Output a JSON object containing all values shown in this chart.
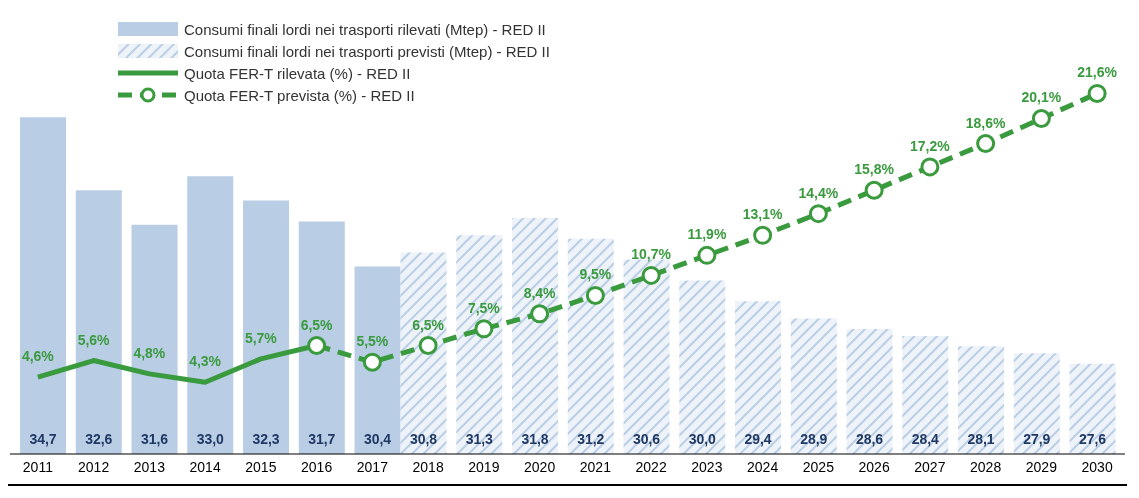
{
  "chart_data": {
    "type": "bar",
    "categories": [
      "2011",
      "2012",
      "2013",
      "2014",
      "2015",
      "2016",
      "2017",
      "2018",
      "2019",
      "2020",
      "2021",
      "2022",
      "2023",
      "2024",
      "2025",
      "2026",
      "2027",
      "2028",
      "2029",
      "2030"
    ],
    "series": [
      {
        "name": "Consumi finali lordi nei trasporti rilevati (Mtep) - RED II",
        "color": "#b9cde5",
        "values": [
          34.7,
          32.6,
          31.6,
          33.0,
          32.3,
          31.7,
          30.4,
          null,
          null,
          null,
          null,
          null,
          null,
          null,
          null,
          null,
          null,
          null,
          null,
          null
        ],
        "value_labels": [
          "34,7",
          "32,6",
          "31,6",
          "33,0",
          "32,3",
          "31,7",
          "30,4",
          null,
          null,
          null,
          null,
          null,
          null,
          null,
          null,
          null,
          null,
          null,
          null,
          null
        ]
      },
      {
        "name": "Consumi finali lordi nei trasporti previsti (Mtep) - RED II",
        "color": "#b9cde5",
        "line_style": "dashed",
        "values": [
          null,
          null,
          null,
          null,
          null,
          null,
          null,
          30.8,
          31.3,
          31.8,
          31.2,
          30.6,
          30.0,
          29.4,
          28.9,
          28.6,
          28.4,
          28.1,
          27.9,
          27.6
        ],
        "value_labels": [
          null,
          null,
          null,
          null,
          null,
          null,
          null,
          "30,8",
          "31,3",
          "31,8",
          "31,2",
          "30,6",
          "30,0",
          "29,4",
          "28,9",
          "28,6",
          "28,4",
          "28,1",
          "27,9",
          "27,6"
        ]
      },
      {
        "name": "Quota FER-T rilevata (%) - RED II",
        "type": "line",
        "axis": "y2",
        "color": "#3a9a3e",
        "line_style": "solid",
        "marker": "none",
        "values": [
          4.6,
          5.6,
          4.8,
          4.3,
          5.7,
          6.5,
          null,
          null,
          null,
          null,
          null,
          null,
          null,
          null,
          null,
          null,
          null,
          null,
          null,
          null
        ],
        "value_labels": [
          "4,6%",
          "5,6%",
          "4,8%",
          "4,3%",
          "5,7%",
          "6,5%",
          null,
          null,
          null,
          null,
          null,
          null,
          null,
          null,
          null,
          null,
          null,
          null,
          null,
          null
        ]
      },
      {
        "name": "Quota FER-T prevista (%) - RED II",
        "type": "line",
        "axis": "y2",
        "color": "#3a9a3e",
        "line_style": "dashed",
        "marker": "circle",
        "values": [
          null,
          null,
          null,
          null,
          null,
          6.5,
          5.5,
          6.5,
          7.5,
          8.4,
          9.5,
          10.7,
          11.9,
          13.1,
          14.4,
          15.8,
          17.2,
          18.6,
          20.1,
          21.6
        ],
        "value_labels": [
          null,
          null,
          null,
          null,
          null,
          null,
          "5,5%",
          "6,5%",
          "7,5%",
          "8,4%",
          "9,5%",
          "10,7%",
          "11,9%",
          "13,1%",
          "14,4%",
          "15,8%",
          "17,2%",
          "18,6%",
          "20,1%",
          "21,6%"
        ]
      }
    ],
    "ylim": [
      25,
      37.5
    ],
    "y2lim": [
      0,
      26
    ],
    "tick_labels": "x",
    "grid": false,
    "legend": "top left"
  }
}
